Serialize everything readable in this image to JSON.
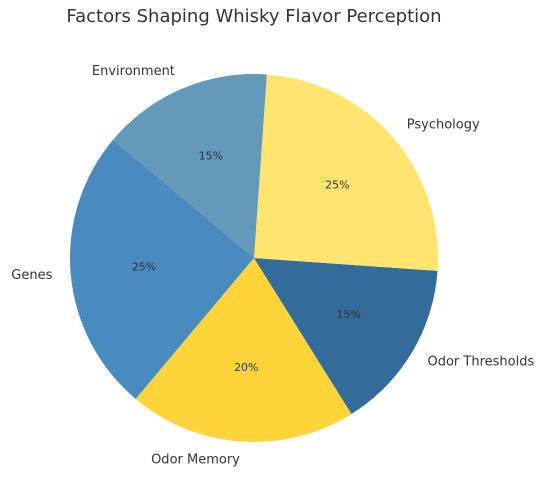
{
  "chart_data": {
    "type": "pie",
    "title": "Factors Shaping Whisky Flavor Perception",
    "categories": [
      "Genes",
      "Odor Memory",
      "Odor Thresholds",
      "Psychology",
      "Environment"
    ],
    "values": [
      25,
      20,
      15,
      25,
      15
    ],
    "value_labels": [
      "25%",
      "20%",
      "15%",
      "25%",
      "15%"
    ],
    "colors": [
      "#4a8bbf",
      "#fdd43a",
      "#336b9a",
      "#ffe56f",
      "#6499b9"
    ]
  }
}
